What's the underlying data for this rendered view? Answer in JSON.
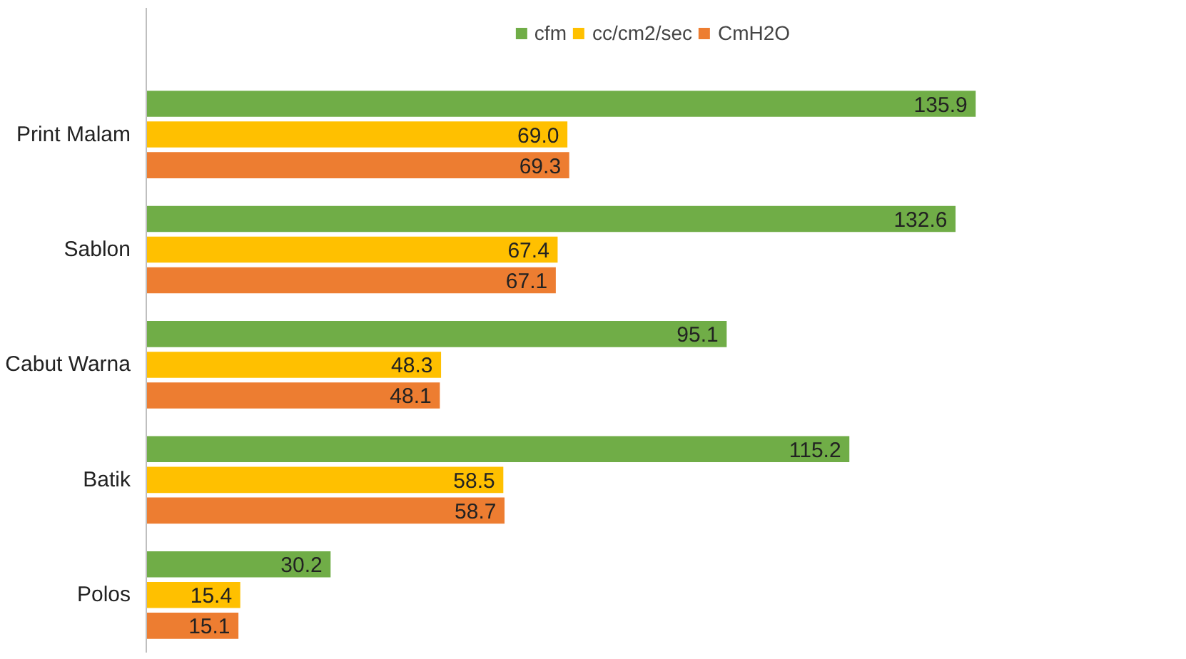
{
  "chart_data": {
    "type": "bar",
    "orientation": "horizontal",
    "categories": [
      "Print Malam",
      "Sablon",
      "Cabut Warna",
      "Batik",
      "Polos"
    ],
    "series": [
      {
        "name": "cfm",
        "color": "#70ad47",
        "values": [
          135.9,
          132.6,
          95.1,
          115.2,
          30.2
        ],
        "value_labels": [
          "135.9",
          "132.6",
          "95.1",
          "115.2",
          "30.2"
        ]
      },
      {
        "name": "cc/cm2/sec",
        "color": "#ffc000",
        "values": [
          69.0,
          67.4,
          48.3,
          58.5,
          15.4
        ],
        "value_labels": [
          "69.0",
          "67.4",
          "48.3",
          "58.5",
          "15.4"
        ]
      },
      {
        "name": "CmH2O",
        "color": "#ed7d31",
        "values": [
          69.3,
          67.1,
          48.1,
          58.7,
          15.1
        ],
        "value_labels": [
          "69.3",
          "67.1",
          "48.1",
          "58.7",
          "15.1"
        ]
      }
    ],
    "legend": "top"
  }
}
